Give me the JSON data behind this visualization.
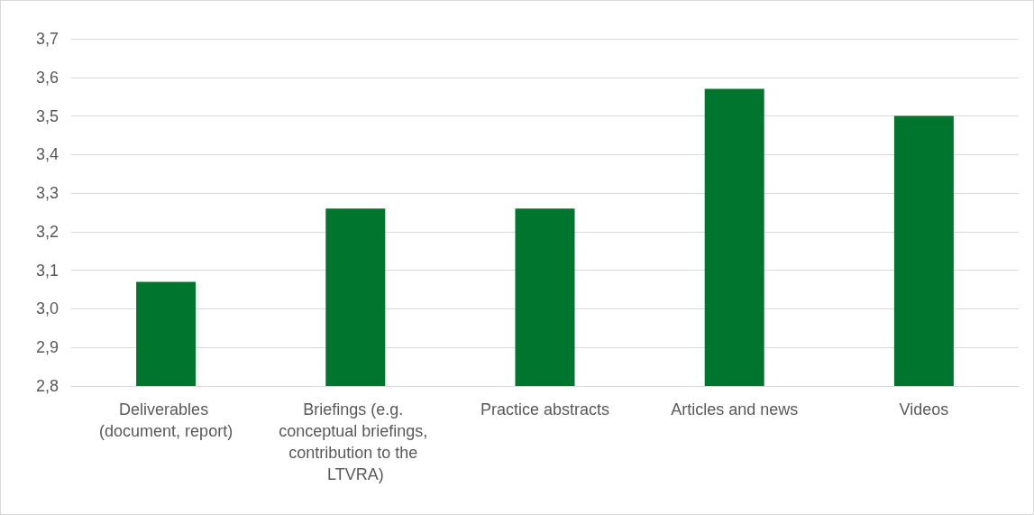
{
  "chart_data": {
    "type": "bar",
    "categories": [
      "Deliverables (document, report)",
      "Briefings (e.g. conceptual briefings, contribution to the LTVRA)",
      "Practice abstracts",
      "Articles and news",
      "Videos"
    ],
    "values": [
      3.07,
      3.26,
      3.26,
      3.57,
      3.5
    ],
    "color": "#00752d",
    "ylim": [
      2.8,
      3.7
    ],
    "yticks": [
      {
        "value": 2.8,
        "label": "2,8"
      },
      {
        "value": 2.9,
        "label": "2,9"
      },
      {
        "value": 3.0,
        "label": "3,0"
      },
      {
        "value": 3.1,
        "label": "3,1"
      },
      {
        "value": 3.2,
        "label": "3,2"
      },
      {
        "value": 3.3,
        "label": "3,3"
      },
      {
        "value": 3.4,
        "label": "3,4"
      },
      {
        "value": 3.5,
        "label": "3,5"
      },
      {
        "value": 3.6,
        "label": "3,6"
      },
      {
        "value": 3.7,
        "label": "3,7"
      }
    ],
    "grid": "y"
  }
}
